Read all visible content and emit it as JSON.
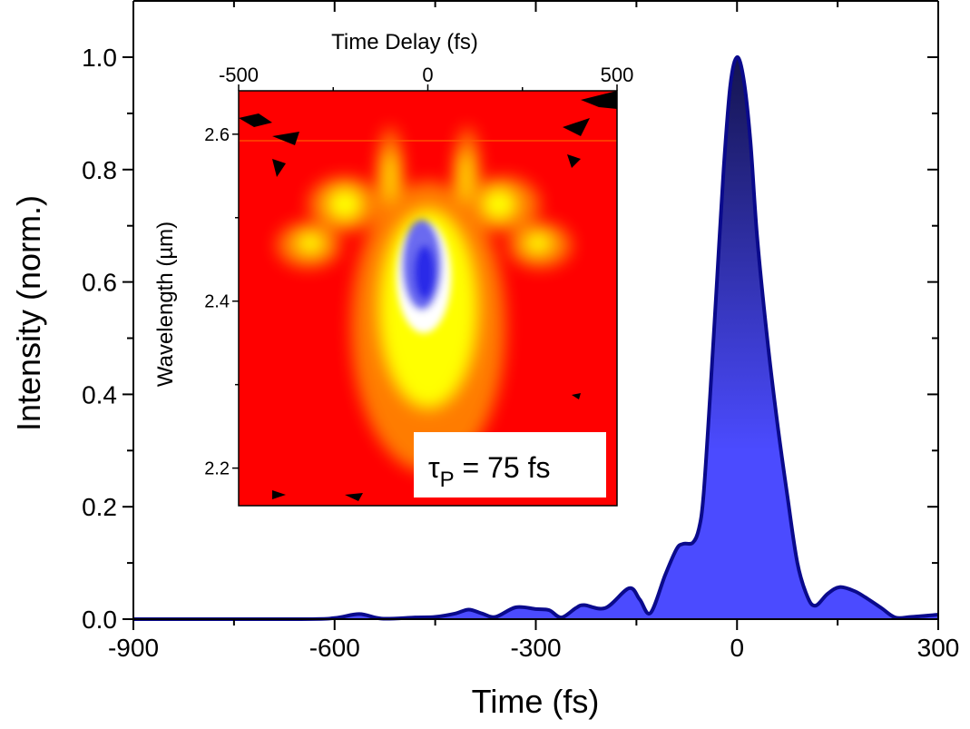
{
  "chart_data": [
    {
      "type": "area",
      "xlabel": "Time (fs)",
      "ylabel": "Intensity (norm.)",
      "xlim": [
        -900,
        300
      ],
      "ylim": [
        0,
        1.0
      ],
      "xticks": [
        -900,
        -600,
        -300,
        0,
        300
      ],
      "xtick_labels": [
        "-900",
        "-600",
        "-300",
        "0",
        "300"
      ],
      "yticks": [
        0.0,
        0.2,
        0.4,
        0.6,
        0.8,
        1.0
      ],
      "ytick_labels": [
        "0.0",
        "0.2",
        "0.4",
        "0.6",
        "0.8",
        "1.0"
      ],
      "grid": false,
      "line_color": "#0a0a8c",
      "fill_color_top": "#141450",
      "fill_color_bottom": "#4b4bff",
      "x": [
        -900,
        -650,
        -600,
        -563,
        -530,
        -480,
        -450,
        -420,
        -400,
        -380,
        -360,
        -330,
        -300,
        -280,
        -262,
        -240,
        -228,
        -196,
        -161,
        -145,
        -129,
        -107,
        -90,
        -80,
        -66,
        -57,
        -50,
        -40,
        -30,
        -20,
        -10,
        0,
        10,
        20,
        30,
        45,
        60,
        75,
        90,
        105,
        117,
        135,
        153,
        175,
        191,
        215,
        236,
        260,
        300
      ],
      "y": [
        0,
        0,
        0.002,
        0.009,
        0.001,
        0.003,
        0.004,
        0.01,
        0.017,
        0.01,
        0.004,
        0.021,
        0.018,
        0.016,
        0.003,
        0.02,
        0.025,
        0.02,
        0.055,
        0.035,
        0.011,
        0.079,
        0.125,
        0.134,
        0.136,
        0.16,
        0.22,
        0.4,
        0.6,
        0.8,
        0.95,
        1.0,
        0.96,
        0.85,
        0.68,
        0.5,
        0.35,
        0.22,
        0.1,
        0.04,
        0.024,
        0.045,
        0.057,
        0.05,
        0.039,
        0.02,
        0.003,
        0.004,
        0.008
      ]
    },
    {
      "type": "heatmap",
      "xlabel": "Time Delay (fs)",
      "ylabel": "Wavelength (µm)",
      "xlim": [
        -500,
        500
      ],
      "ylim": [
        2.155,
        2.652
      ],
      "xticks": [
        -500,
        0,
        500
      ],
      "xtick_labels": [
        "-500",
        "0",
        "500"
      ],
      "yticks": [
        2.2,
        2.4,
        2.6
      ],
      "ytick_labels": [
        "2.2",
        "2.4",
        "2.6"
      ],
      "colormap": [
        "#000000",
        "#ff0000",
        "#ffff00",
        "#ffffff",
        "#0000ff"
      ],
      "annotation": {
        "symbol": "τ",
        "subscript": "P",
        "text": " = 75 fs"
      }
    }
  ]
}
